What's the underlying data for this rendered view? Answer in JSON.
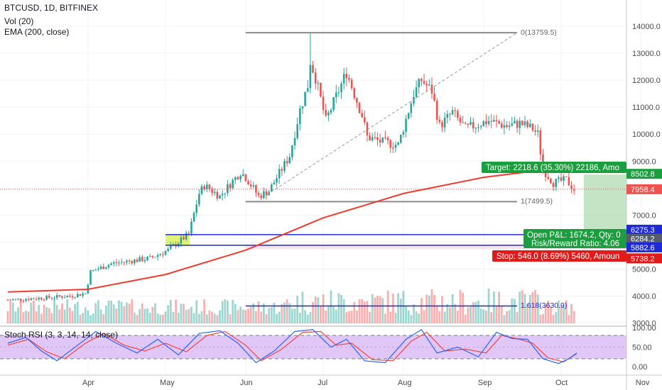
{
  "legend": {
    "line1": "BTCUSD, 1D, BITFINEX",
    "line2": "Vol (20)",
    "line3": "EMA (200, close)",
    "rsi": "Stoch RSI (3, 3, 14, 14, close)"
  },
  "levels": {
    "fib_top": "0(13759.5)",
    "fib_mid": "1(7499.5)",
    "fib_ext": "1.618(3630.9)"
  },
  "position": {
    "target": "Target: 2218.6 (35.30%) 22186, Amo",
    "pnl": "Open P&L: 1674.2, Qty: 0",
    "rr": "Risk/Reward Ratio: 4.06",
    "stop": "Stop: 546.0 (8.69%) 5460, Amoun"
  },
  "price_badges": {
    "target": "8502.8",
    "last": "7958.4",
    "upper_line": "6275.3",
    "entry": "6284.2",
    "lower_line": "5882.6",
    "stop": "5738.2"
  },
  "colors": {
    "up": "#26a69a",
    "down": "#ef5350",
    "ema": "#f23b2f",
    "blue_line": "#1e2ad8",
    "target_zone": "#a5d6a7",
    "stop_zone": "#f8bbd0",
    "rsi_k": "#2962ff",
    "rsi_d": "#f44336",
    "rsi_band": "#d7b3f5"
  },
  "chart_data": {
    "type": "candlestick",
    "symbol": "BTCUSD",
    "interval": "1D",
    "exchange": "BITFINEX",
    "ylim": [
      3000,
      14600
    ],
    "y_ticks": [
      3000,
      4000,
      5000,
      6000,
      7000,
      8000,
      9000,
      10000,
      11000,
      12000,
      13000,
      14000
    ],
    "y_tick_labels": [
      "3000.0",
      "4000.0",
      "5000.0",
      "6000.0",
      "7000.0",
      "8000.0",
      "9000.0",
      "10000.0",
      "11000.0",
      "12000.0",
      "13000.0",
      "14000.0"
    ],
    "x_ticks": [
      "Apr",
      "May",
      "Jun",
      "Jul",
      "Aug",
      "Sep",
      "Oct",
      "Nov"
    ],
    "x_range": [
      "2019-03-01",
      "2019-11-30"
    ],
    "candle_anchors": [
      [
        "2019-03-01",
        3850
      ],
      [
        "2019-03-25",
        4000
      ],
      [
        "2019-03-31",
        4100
      ],
      [
        "2019-04-02",
        4900
      ],
      [
        "2019-04-10",
        5200
      ],
      [
        "2019-04-25",
        5400
      ],
      [
        "2019-05-02",
        5700
      ],
      [
        "2019-05-10",
        6300
      ],
      [
        "2019-05-14",
        7800
      ],
      [
        "2019-05-16",
        8100
      ],
      [
        "2019-05-22",
        7700
      ],
      [
        "2019-05-30",
        8600
      ],
      [
        "2019-06-01",
        8400
      ],
      [
        "2019-06-06",
        7700
      ],
      [
        "2019-06-10",
        7900
      ],
      [
        "2019-06-18",
        9200
      ],
      [
        "2019-06-22",
        10900
      ],
      [
        "2019-06-25",
        11800
      ],
      [
        "2019-06-26",
        12700
      ],
      [
        "2019-06-28",
        12100
      ],
      [
        "2019-07-02",
        10500
      ],
      [
        "2019-07-10",
        12300
      ],
      [
        "2019-07-16",
        10700
      ],
      [
        "2019-07-18",
        9900
      ],
      [
        "2019-07-24",
        9700
      ],
      [
        "2019-07-30",
        9600
      ],
      [
        "2019-08-05",
        11500
      ],
      [
        "2019-08-08",
        12000
      ],
      [
        "2019-08-12",
        11600
      ],
      [
        "2019-08-15",
        10300
      ],
      [
        "2019-08-20",
        10800
      ],
      [
        "2019-08-25",
        10200
      ],
      [
        "2019-09-03",
        10500
      ],
      [
        "2019-09-10",
        10300
      ],
      [
        "2019-09-15",
        10400
      ],
      [
        "2019-09-20",
        10200
      ],
      [
        "2019-09-22",
        10000
      ],
      [
        "2019-09-24",
        8700
      ],
      [
        "2019-09-28",
        8200
      ],
      [
        "2019-10-03",
        8300
      ],
      [
        "2019-10-06",
        7950
      ]
    ],
    "ema200": [
      [
        "2019-03-01",
        4150
      ],
      [
        "2019-04-01",
        4250
      ],
      [
        "2019-05-01",
        4800
      ],
      [
        "2019-06-01",
        5700
      ],
      [
        "2019-07-01",
        6900
      ],
      [
        "2019-08-01",
        7800
      ],
      [
        "2019-09-01",
        8400
      ],
      [
        "2019-09-22",
        8650
      ],
      [
        "2019-10-07",
        8720
      ]
    ],
    "fib_top": 13759.5,
    "fib_mid": 7499.5,
    "fib_ext": 3630.9,
    "target_price": 8502.8,
    "last_price": 7958.4,
    "entry_price": 6284.2,
    "blue_lines": [
      6275.3,
      5882.6
    ],
    "stop_price": 5738.2,
    "volume_pane": {
      "position": "bottom overlay of price pane"
    },
    "stoch_rsi": {
      "ylim": [
        0,
        100
      ],
      "y_tick_labels": [
        "100.00",
        "50.00",
        "0.00"
      ],
      "bands": [
        20,
        80
      ],
      "k": [
        [
          "2019-03-01",
          60
        ],
        [
          "2019-03-08",
          75
        ],
        [
          "2019-03-14",
          40
        ],
        [
          "2019-03-20",
          15
        ],
        [
          "2019-03-28",
          55
        ],
        [
          "2019-04-04",
          90
        ],
        [
          "2019-04-12",
          60
        ],
        [
          "2019-04-20",
          35
        ],
        [
          "2019-04-28",
          70
        ],
        [
          "2019-05-06",
          30
        ],
        [
          "2019-05-14",
          85
        ],
        [
          "2019-05-22",
          92
        ],
        [
          "2019-05-29",
          60
        ],
        [
          "2019-06-05",
          10
        ],
        [
          "2019-06-12",
          40
        ],
        [
          "2019-06-20",
          90
        ],
        [
          "2019-06-27",
          95
        ],
        [
          "2019-07-04",
          50
        ],
        [
          "2019-07-10",
          70
        ],
        [
          "2019-07-17",
          15
        ],
        [
          "2019-07-25",
          10
        ],
        [
          "2019-08-02",
          70
        ],
        [
          "2019-08-08",
          95
        ],
        [
          "2019-08-14",
          35
        ],
        [
          "2019-08-22",
          50
        ],
        [
          "2019-08-30",
          25
        ],
        [
          "2019-09-06",
          88
        ],
        [
          "2019-09-12",
          72
        ],
        [
          "2019-09-18",
          70
        ],
        [
          "2019-09-24",
          20
        ],
        [
          "2019-09-30",
          8
        ],
        [
          "2019-10-04",
          20
        ],
        [
          "2019-10-07",
          35
        ]
      ],
      "d": [
        [
          "2019-03-01",
          55
        ],
        [
          "2019-03-09",
          70
        ],
        [
          "2019-03-16",
          38
        ],
        [
          "2019-03-23",
          20
        ],
        [
          "2019-03-31",
          60
        ],
        [
          "2019-04-07",
          85
        ],
        [
          "2019-04-15",
          55
        ],
        [
          "2019-04-23",
          40
        ],
        [
          "2019-05-01",
          60
        ],
        [
          "2019-05-09",
          38
        ],
        [
          "2019-05-17",
          80
        ],
        [
          "2019-05-24",
          90
        ],
        [
          "2019-06-01",
          55
        ],
        [
          "2019-06-07",
          15
        ],
        [
          "2019-06-15",
          45
        ],
        [
          "2019-06-23",
          88
        ],
        [
          "2019-06-30",
          90
        ],
        [
          "2019-07-06",
          55
        ],
        [
          "2019-07-12",
          60
        ],
        [
          "2019-07-20",
          18
        ],
        [
          "2019-07-28",
          15
        ],
        [
          "2019-08-04",
          65
        ],
        [
          "2019-08-10",
          88
        ],
        [
          "2019-08-17",
          40
        ],
        [
          "2019-08-25",
          45
        ],
        [
          "2019-09-02",
          35
        ],
        [
          "2019-09-08",
          80
        ],
        [
          "2019-09-15",
          70
        ],
        [
          "2019-09-20",
          60
        ],
        [
          "2019-09-26",
          22
        ],
        [
          "2019-10-02",
          12
        ],
        [
          "2019-10-05",
          25
        ],
        [
          "2019-10-07",
          33
        ]
      ]
    }
  }
}
